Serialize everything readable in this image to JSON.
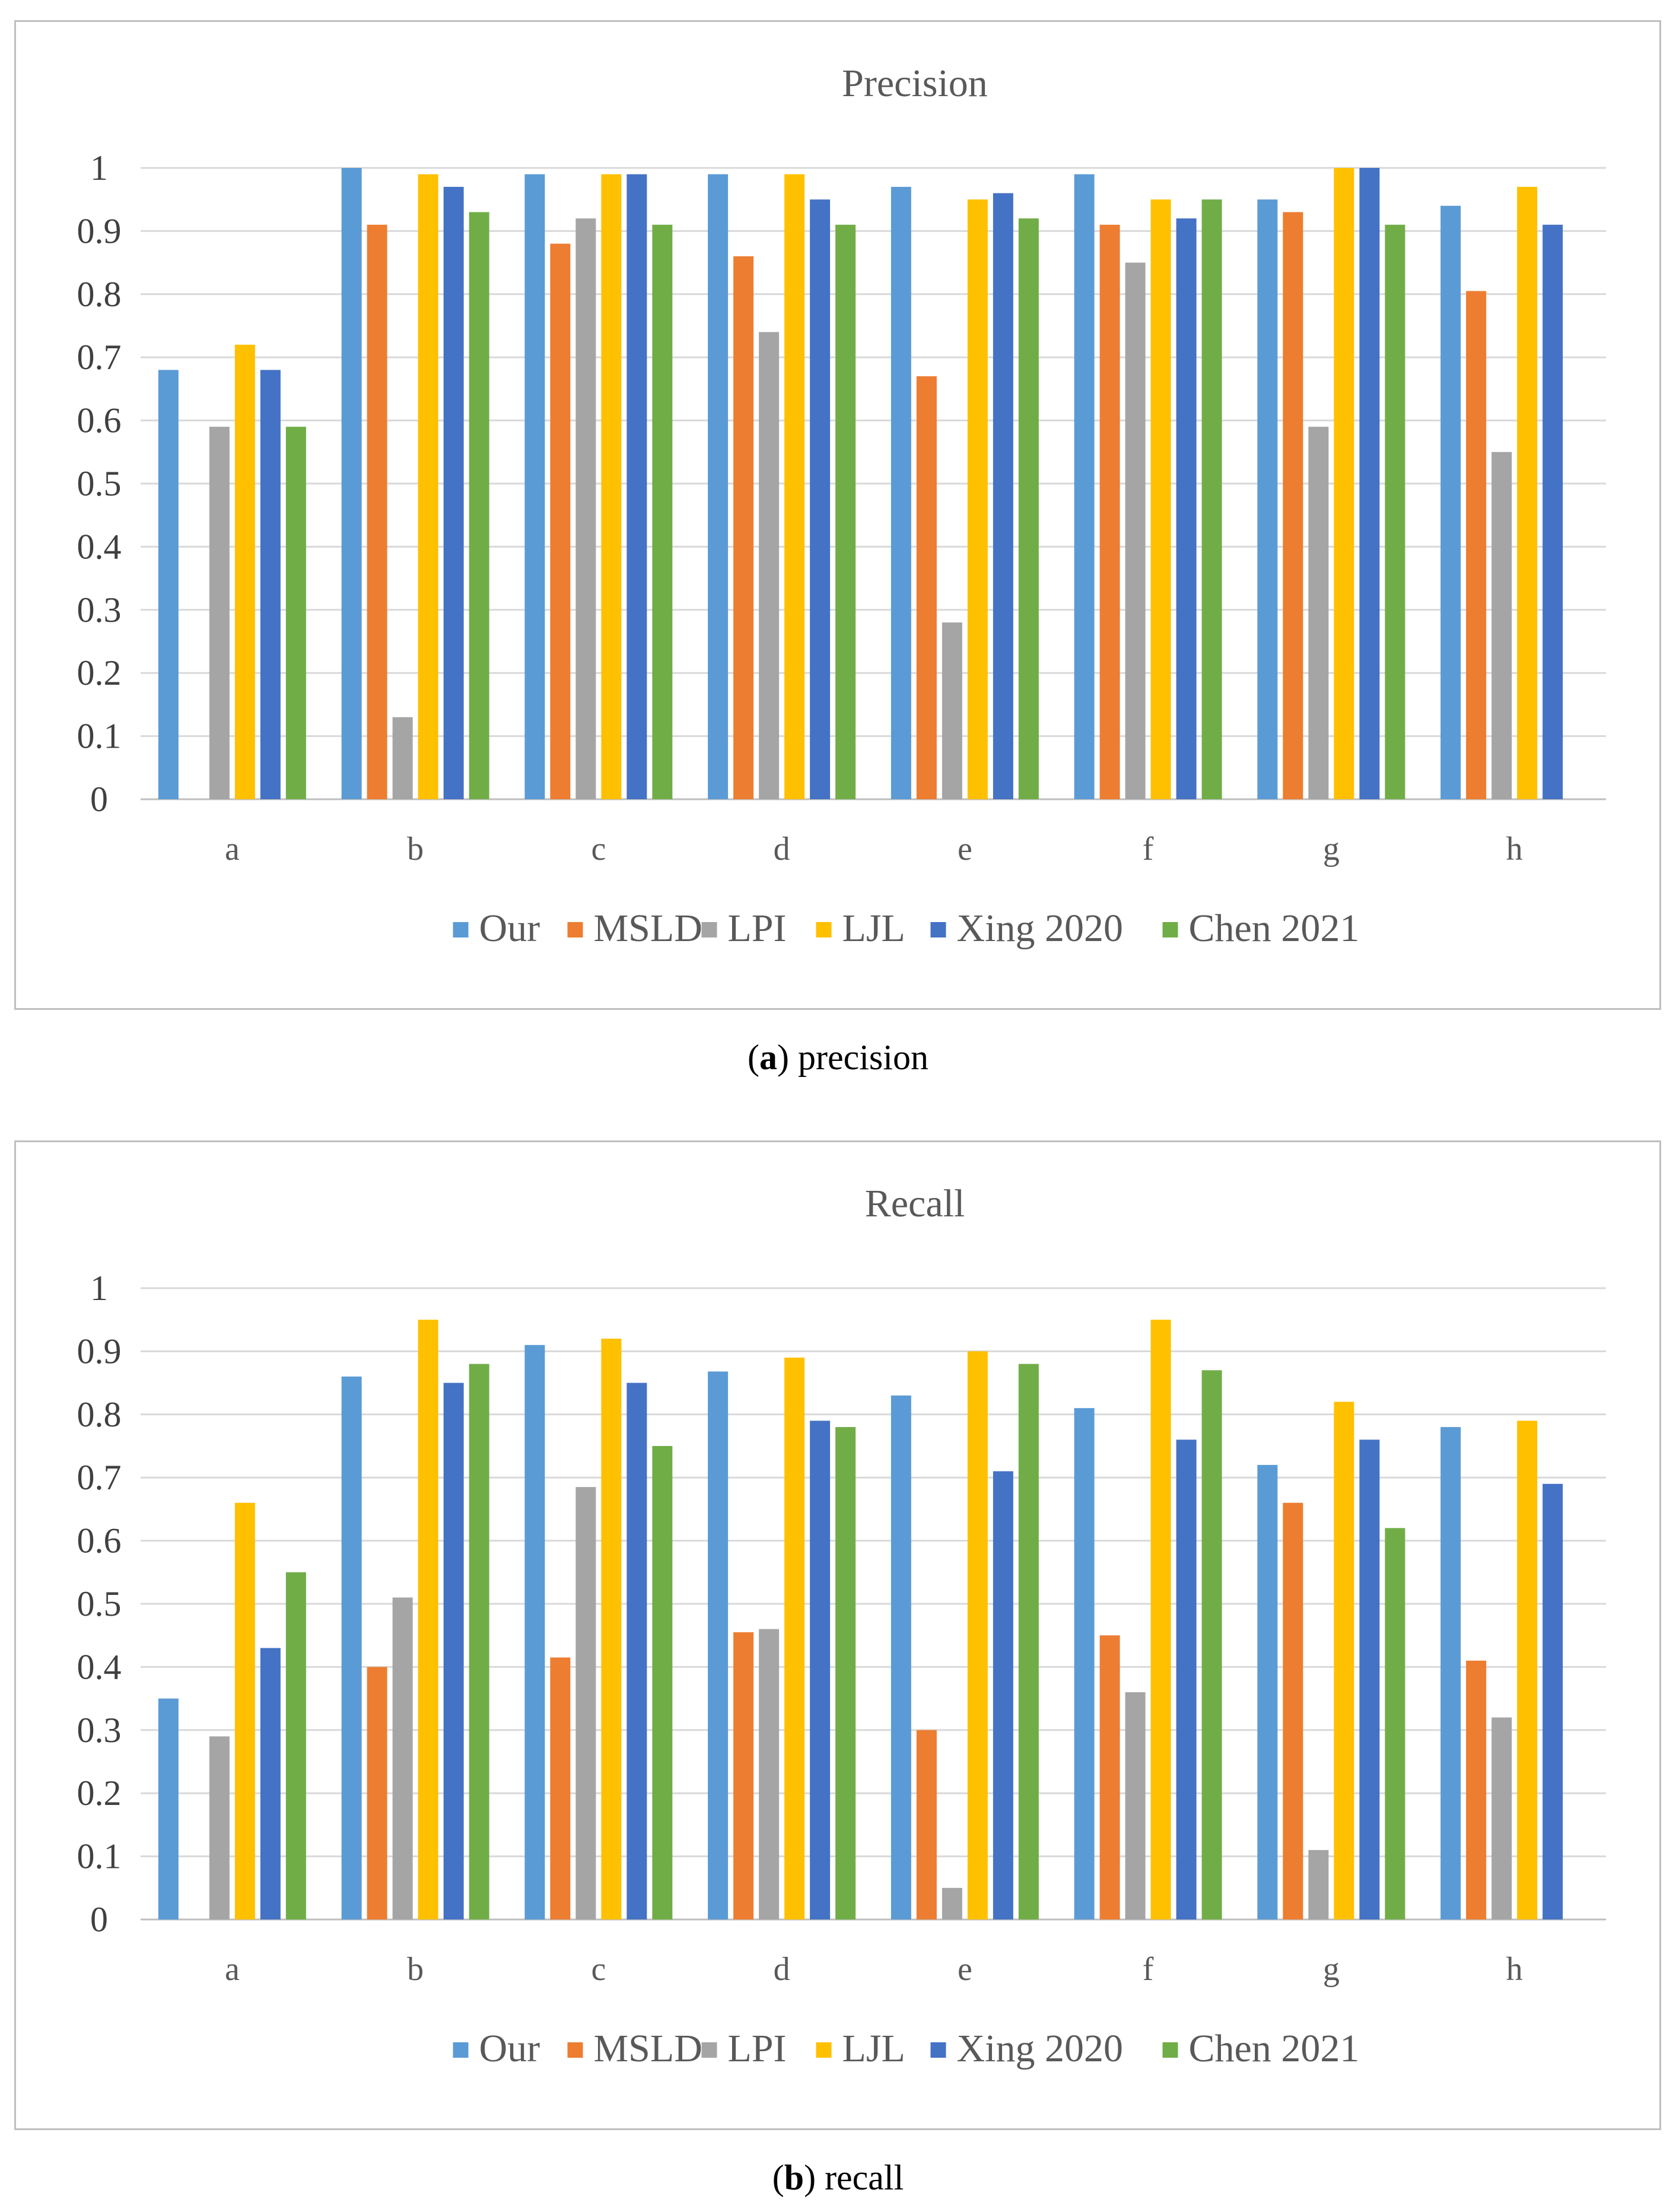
{
  "chart_data": [
    {
      "type": "bar",
      "title": "Precision",
      "xlabel": "",
      "ylabel": "",
      "ylim": [
        0,
        1
      ],
      "yticks": [
        "0",
        "0.1",
        "0.2",
        "0.3",
        "0.4",
        "0.5",
        "0.6",
        "0.7",
        "0.8",
        "0.9",
        "1"
      ],
      "grid": true,
      "legend_position": "bottom",
      "categories": [
        "a",
        "b",
        "c",
        "d",
        "e",
        "f",
        "g",
        "h"
      ],
      "series": [
        {
          "name": "Our",
          "color": "#5b9bd5",
          "values": [
            0.68,
            1.0,
            0.99,
            0.99,
            0.97,
            0.99,
            0.95,
            0.94
          ]
        },
        {
          "name": "MSLD",
          "color": "#ed7d31",
          "values": [
            0,
            0.91,
            0.88,
            0.86,
            0.67,
            0.91,
            0.93,
            0.805
          ]
        },
        {
          "name": "LPI",
          "color": "#a5a5a5",
          "values": [
            0.59,
            0.13,
            0.92,
            0.74,
            0.28,
            0.85,
            0.59,
            0.55
          ]
        },
        {
          "name": "LJL",
          "color": "#ffc000",
          "values": [
            0.72,
            0.99,
            0.99,
            0.99,
            0.95,
            0.95,
            1.0,
            0.97
          ]
        },
        {
          "name": "Xing 2020",
          "color": "#4472c4",
          "values": [
            0.68,
            0.97,
            0.99,
            0.95,
            0.96,
            0.92,
            1.0,
            0.91
          ]
        },
        {
          "name": "Chen 2021",
          "color": "#70ad47",
          "values": [
            0.59,
            0.93,
            0.91,
            0.91,
            0.92,
            0.95,
            0.91,
            0
          ]
        }
      ]
    },
    {
      "type": "bar",
      "title": "Recall",
      "xlabel": "",
      "ylabel": "",
      "ylim": [
        0,
        1
      ],
      "yticks": [
        "0",
        "0.1",
        "0.2",
        "0.3",
        "0.4",
        "0.5",
        "0.6",
        "0.7",
        "0.8",
        "0.9",
        "1"
      ],
      "grid": true,
      "legend_position": "bottom",
      "categories": [
        "a",
        "b",
        "c",
        "d",
        "e",
        "f",
        "g",
        "h"
      ],
      "series": [
        {
          "name": "Our",
          "color": "#5b9bd5",
          "values": [
            0.35,
            0.86,
            0.91,
            0.868,
            0.83,
            0.81,
            0.72,
            0.78
          ]
        },
        {
          "name": "MSLD",
          "color": "#ed7d31",
          "values": [
            0,
            0.4,
            0.415,
            0.455,
            0.3,
            0.45,
            0.66,
            0.41
          ]
        },
        {
          "name": "LPI",
          "color": "#a5a5a5",
          "values": [
            0.29,
            0.51,
            0.685,
            0.46,
            0.05,
            0.36,
            0.11,
            0.32
          ]
        },
        {
          "name": "LJL",
          "color": "#ffc000",
          "values": [
            0.66,
            0.95,
            0.92,
            0.89,
            0.9,
            0.95,
            0.82,
            0.79
          ]
        },
        {
          "name": "Xing 2020",
          "color": "#4472c4",
          "values": [
            0.43,
            0.85,
            0.85,
            0.79,
            0.71,
            0.76,
            0.76,
            0.69
          ]
        },
        {
          "name": "Chen 2021",
          "color": "#70ad47",
          "values": [
            0.55,
            0.88,
            0.75,
            0.78,
            0.88,
            0.87,
            0.62,
            0
          ]
        }
      ]
    }
  ],
  "captions": [
    {
      "label": "a",
      "text": "precision"
    },
    {
      "label": "b",
      "text": "recall"
    }
  ]
}
